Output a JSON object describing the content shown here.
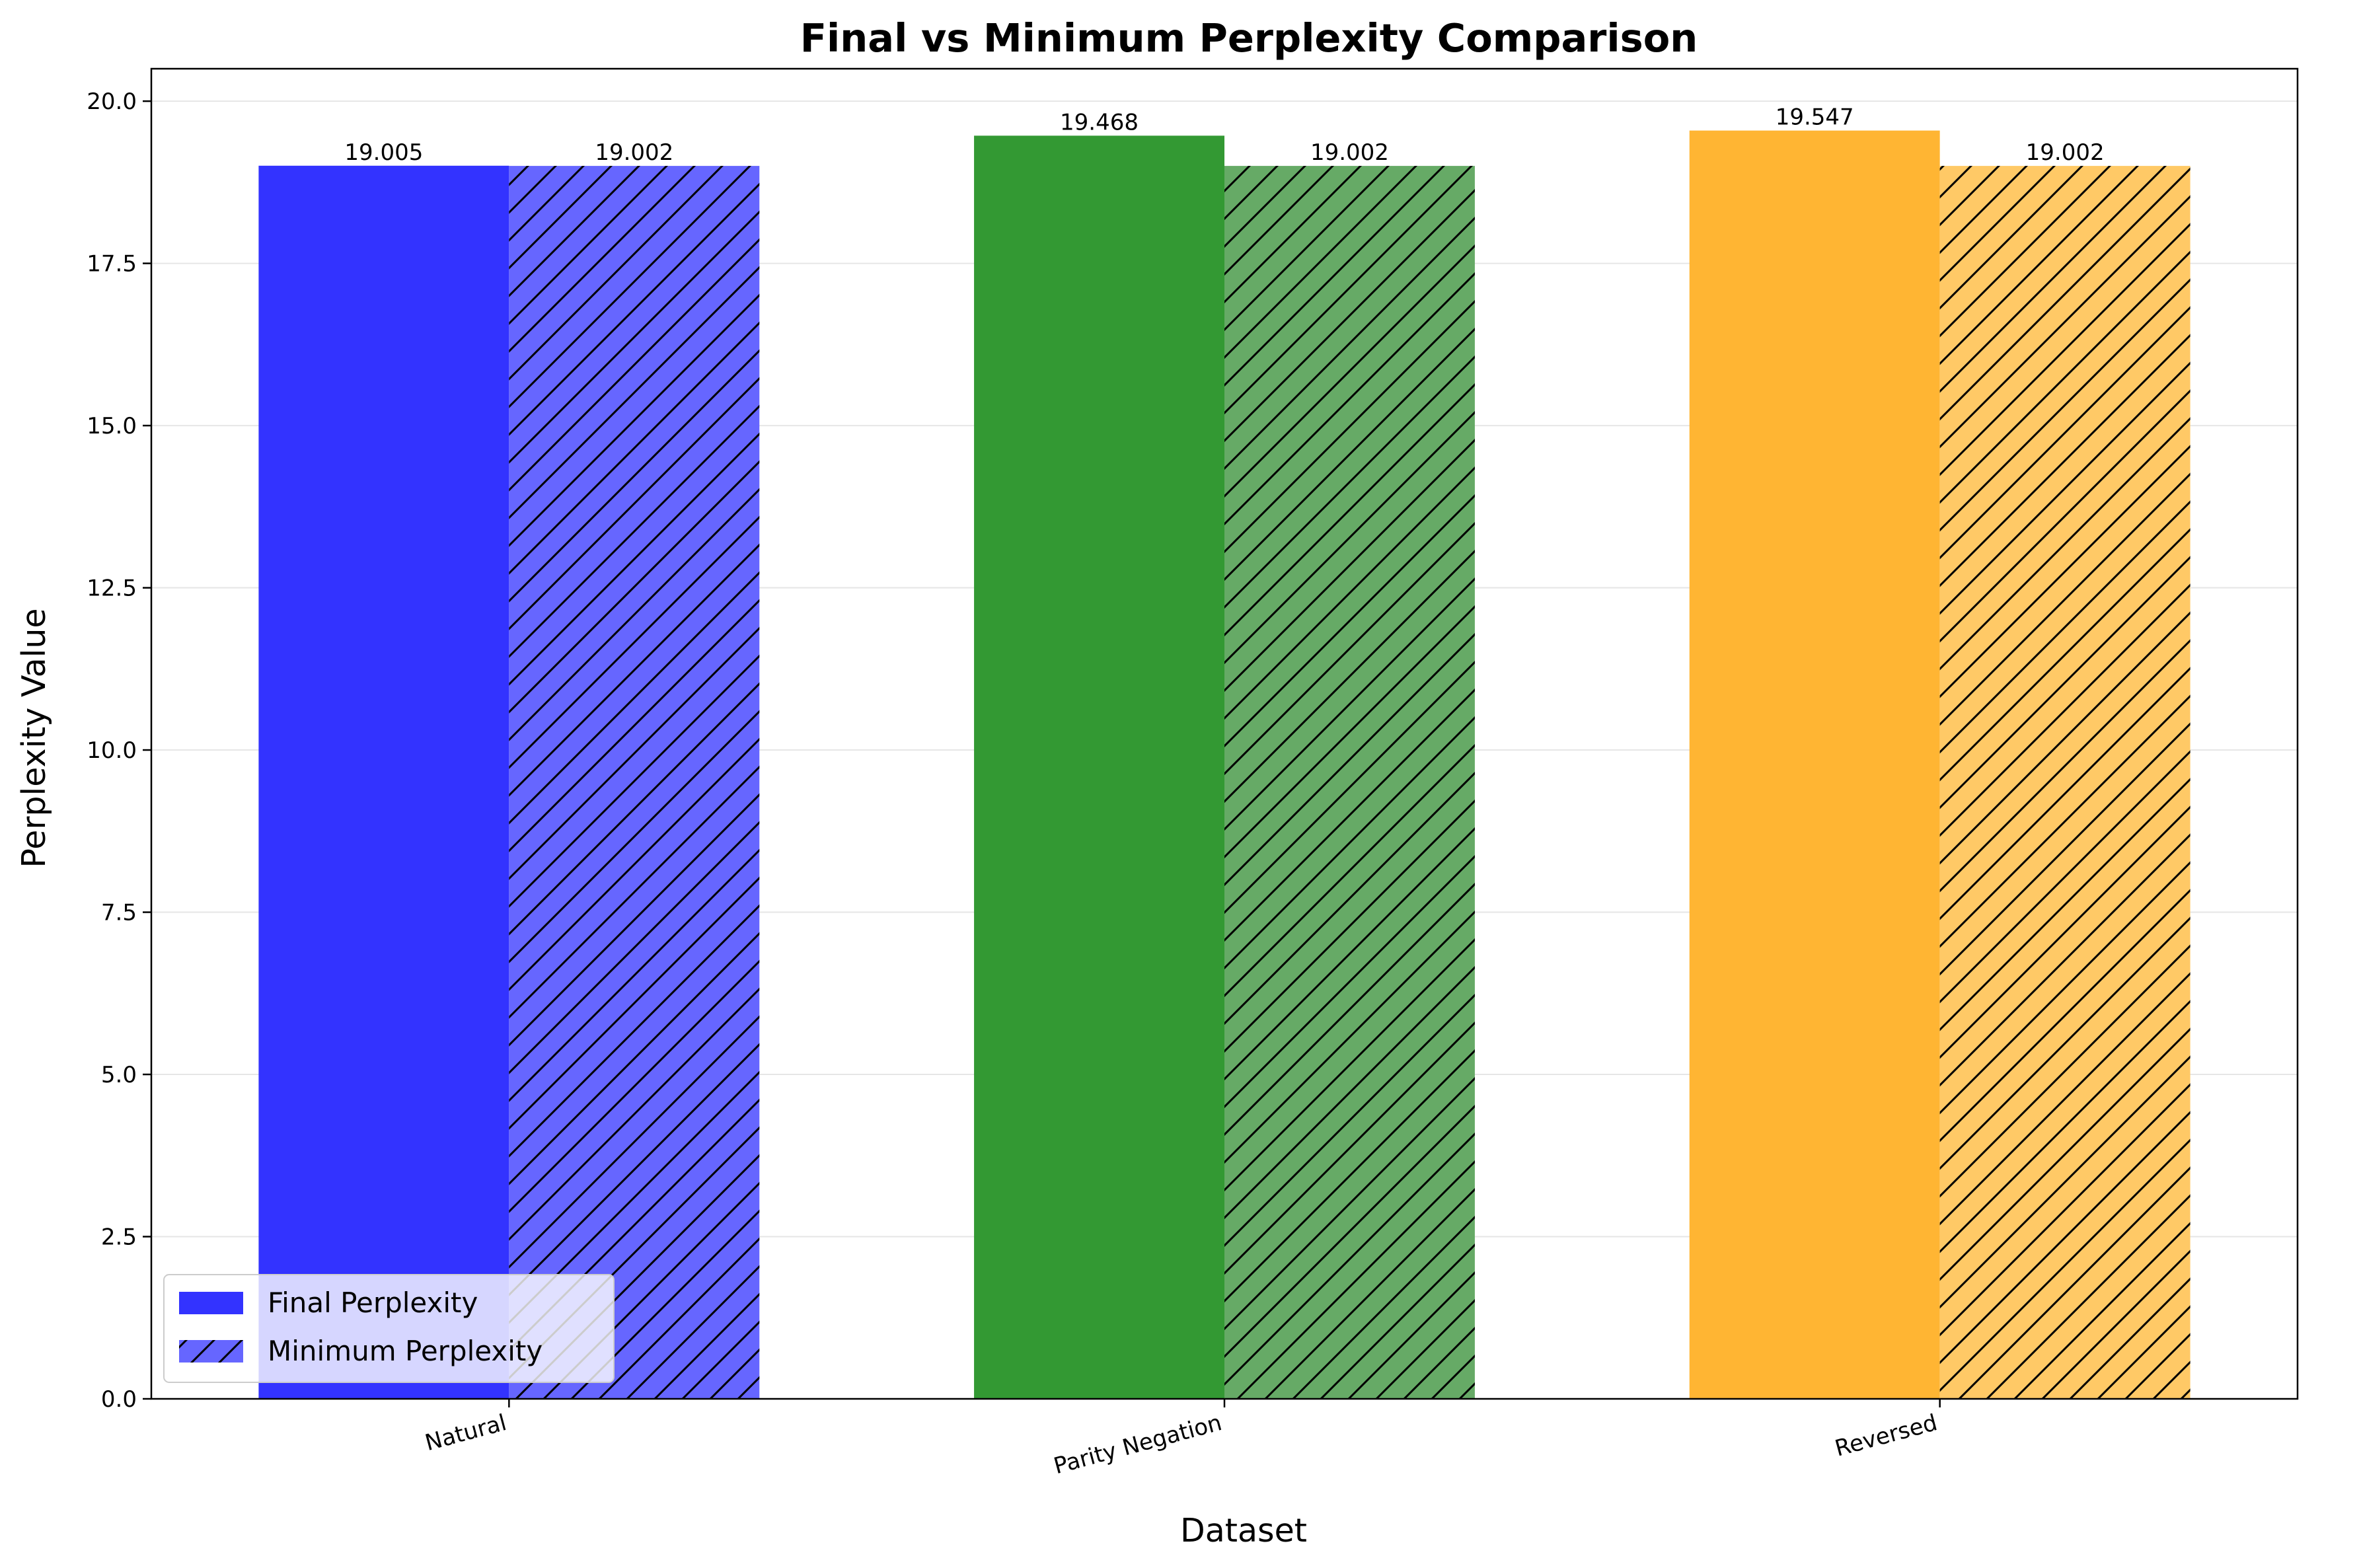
{
  "chart_data": {
    "type": "bar",
    "title": "Final vs Minimum Perplexity Comparison",
    "xlabel": "Dataset",
    "ylabel": "Perplexity Value",
    "categories": [
      "Natural",
      "Parity Negation",
      "Reversed"
    ],
    "series": [
      {
        "name": "Final Perplexity",
        "values": [
          19.005,
          19.468,
          19.547
        ],
        "labels": [
          "19.005",
          "19.468",
          "19.547"
        ],
        "hatch": false
      },
      {
        "name": "Minimum Perplexity",
        "values": [
          19.002,
          19.002,
          19.002
        ],
        "labels": [
          "19.002",
          "19.002",
          "19.002"
        ],
        "hatch": true
      }
    ],
    "category_colors": {
      "final": [
        "#3333ff",
        "#339933",
        "#ffb533"
      ],
      "minimum": [
        "#6666ff",
        "#66aa66",
        "#ffc966"
      ]
    },
    "ylim": [
      0,
      20.5
    ],
    "yticks": [
      0,
      2.5,
      5,
      7.5,
      10,
      12.5,
      15,
      17.5,
      20
    ],
    "ytick_labels": [
      "0.0",
      "2.5",
      "5.0",
      "7.5",
      "10.0",
      "12.5",
      "15.0",
      "17.5",
      "20.0"
    ],
    "grid": "y",
    "legend_position": "lower-left"
  }
}
